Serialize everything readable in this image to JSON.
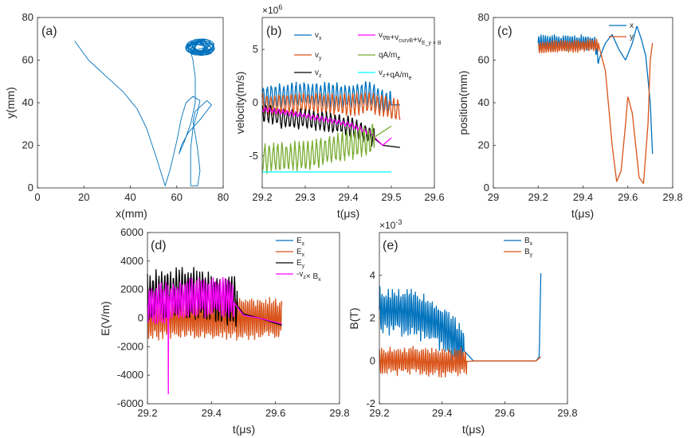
{
  "colors": {
    "blue": "#0072BD",
    "orange": "#D95319",
    "black": "#000000",
    "magenta": "#FF00FF",
    "green": "#77AC30",
    "cyan": "#00FFFF",
    "axis": "#262626"
  },
  "chart_data": [
    {
      "id": "a",
      "type": "line",
      "panel_label": "(a)",
      "xlabel": "x(mm)",
      "ylabel": "y(mm)",
      "xlim": [
        0,
        80
      ],
      "ylim": [
        0,
        80
      ],
      "xticks": [
        "0",
        "20",
        "40",
        "60",
        "80"
      ],
      "yticks": [
        "0",
        "20",
        "40",
        "60",
        "80"
      ],
      "series": [
        {
          "name": "trajectory",
          "color": "blue",
          "points": [
            [
              16,
              69
            ],
            [
              22,
              60
            ],
            [
              30,
              52
            ],
            [
              37,
              45
            ],
            [
              43,
              37
            ],
            [
              47,
              28
            ],
            [
              51,
              15
            ],
            [
              55,
              1
            ],
            [
              57,
              8
            ],
            [
              60,
              22
            ],
            [
              62,
              33
            ],
            [
              64,
              40
            ],
            [
              67,
              43
            ],
            [
              70,
              41
            ],
            [
              69,
              36
            ],
            [
              67,
              28
            ],
            [
              66,
              18
            ],
            [
              66,
              6
            ],
            [
              66,
              1
            ],
            [
              69,
              1
            ],
            [
              70,
              8
            ],
            [
              69,
              18
            ],
            [
              68,
              25
            ],
            [
              67,
              31
            ],
            [
              68,
              36
            ],
            [
              71,
              39
            ],
            [
              73,
              41
            ],
            [
              75,
              39
            ],
            [
              70,
              32
            ],
            [
              65,
              26
            ],
            [
              62,
              20
            ],
            [
              61,
              16
            ],
            [
              63,
              21
            ],
            [
              66,
              30
            ],
            [
              68,
              40
            ],
            [
              68,
              52
            ],
            [
              67,
              60
            ],
            [
              66,
              64
            ]
          ],
          "loop_center": [
            70,
            66
          ],
          "loop_radius": [
            5.5,
            3.5
          ],
          "loop_turns": 24
        }
      ]
    },
    {
      "id": "b",
      "type": "line",
      "panel_label": "(b)",
      "xlabel": "t(μs)",
      "ylabel": "velocity(m/s)",
      "y_multiplier": "×10",
      "y_multiplier_exp": "6",
      "xlim": [
        29.2,
        29.6
      ],
      "ylim": [
        -8,
        8
      ],
      "xticks": [
        "29.2",
        "29.3",
        "29.4",
        "29.5",
        "29.6"
      ],
      "yticks": [
        "-5",
        "0",
        "5"
      ],
      "series": [
        {
          "name": "v_x",
          "label": "v",
          "sub": "x",
          "color": "blue",
          "base": [
            [
              29.2,
              0.5
            ],
            [
              29.3,
              0.8
            ],
            [
              29.4,
              0.6
            ],
            [
              29.45,
              0.9
            ],
            [
              29.5,
              -0.2
            ],
            [
              29.52,
              -0.2
            ]
          ],
          "osc_amp": 1.3,
          "osc_freq": 105,
          "osc_end": 29.5
        },
        {
          "name": "v_y",
          "label": "v",
          "sub": "y",
          "color": "orange",
          "base": [
            [
              29.2,
              -0.2
            ],
            [
              29.3,
              0
            ],
            [
              29.4,
              -0.2
            ],
            [
              29.45,
              0
            ],
            [
              29.5,
              -0.5
            ],
            [
              29.52,
              -0.8
            ]
          ],
          "osc_amp": 1.1,
          "osc_freq": 105,
          "osc_end": 29.52
        },
        {
          "name": "v_z",
          "label": "v",
          "sub": "z",
          "color": "black",
          "base": [
            [
              29.2,
              -0.8
            ],
            [
              29.25,
              -1.5
            ],
            [
              29.3,
              -1.5
            ],
            [
              29.35,
              -1.8
            ],
            [
              29.4,
              -2.2
            ],
            [
              29.45,
              -3.0
            ],
            [
              29.48,
              -4.0
            ],
            [
              29.52,
              -4.2
            ]
          ],
          "osc_amp": 1.0,
          "osc_freq": 100,
          "osc_end": 29.46
        },
        {
          "name": "v_drift",
          "label": "v",
          "sub": "∇B",
          "label2": "+v",
          "sub2": "curvB",
          "label3": "+v",
          "sub3": "E_y × B",
          "color": "magenta",
          "base": [
            [
              29.2,
              -0.6
            ],
            [
              29.3,
              -1.2
            ],
            [
              29.4,
              -2.0
            ],
            [
              29.45,
              -2.8
            ],
            [
              29.47,
              -3.6
            ],
            [
              29.48,
              -4.0
            ],
            [
              29.5,
              -3.3
            ]
          ],
          "osc_amp": 0.25,
          "osc_freq": 100,
          "osc_end": 29.45
        },
        {
          "name": "qA/m_e",
          "label": "qA/m",
          "sub": "e",
          "color": "green",
          "base": [
            [
              29.2,
              -5.2
            ],
            [
              29.3,
              -5.0
            ],
            [
              29.4,
              -4.0
            ],
            [
              29.45,
              -3.5
            ],
            [
              29.5,
              -2.2
            ]
          ],
          "osc_amp": 1.5,
          "osc_freq": 100,
          "osc_end": 29.46
        },
        {
          "name": "v_z+qA/m_e",
          "label": "v",
          "sub": "z",
          "label2": "+qA/m",
          "sub2": "e",
          "color": "cyan",
          "base": [
            [
              29.2,
              -6.5
            ],
            [
              29.5,
              -6.5
            ]
          ],
          "osc_amp": 0,
          "osc_freq": 0,
          "osc_end": 29.2
        }
      ]
    },
    {
      "id": "c",
      "type": "line",
      "panel_label": "(c)",
      "xlabel": "t(μs)",
      "ylabel": "position(mm)",
      "xlim": [
        29.0,
        29.8
      ],
      "ylim": [
        0,
        80
      ],
      "xticks": [
        "29",
        "29.2",
        "29.4",
        "29.6",
        "29.8"
      ],
      "yticks": [
        "0",
        "20",
        "40",
        "60",
        "80"
      ],
      "series": [
        {
          "name": "x",
          "color": "blue",
          "base": [
            [
              29.2,
              68
            ],
            [
              29.45,
              68
            ],
            [
              29.47,
              60
            ],
            [
              29.5,
              68
            ],
            [
              29.53,
              72
            ],
            [
              29.56,
              65
            ],
            [
              29.59,
              60
            ],
            [
              29.62,
              68
            ],
            [
              29.64,
              76
            ],
            [
              29.66,
              70
            ],
            [
              29.68,
              62
            ],
            [
              29.7,
              40
            ],
            [
              29.71,
              16
            ]
          ],
          "osc_amp": 4,
          "osc_freq": 100,
          "osc_end": 29.47
        },
        {
          "name": "y",
          "color": "orange",
          "base": [
            [
              29.2,
              66
            ],
            [
              29.47,
              67
            ],
            [
              29.5,
              55
            ],
            [
              29.53,
              20
            ],
            [
              29.55,
              3
            ],
            [
              29.57,
              8
            ],
            [
              29.59,
              30
            ],
            [
              29.6,
              43
            ],
            [
              29.62,
              35
            ],
            [
              29.65,
              5
            ],
            [
              29.67,
              2
            ],
            [
              29.69,
              30
            ],
            [
              29.7,
              60
            ],
            [
              29.71,
              68
            ]
          ],
          "osc_amp": 3,
          "osc_freq": 100,
          "osc_end": 29.47
        }
      ]
    },
    {
      "id": "d",
      "type": "line",
      "panel_label": "(d)",
      "xlabel": "t(μs)",
      "ylabel": "E(V/m)",
      "xlim": [
        29.2,
        29.8
      ],
      "ylim": [
        -6000,
        6000
      ],
      "xticks": [
        "29.2",
        "29.4",
        "29.6",
        "29.8"
      ],
      "yticks": [
        "-6000",
        "-4000",
        "-2000",
        "0",
        "2000",
        "4000",
        "6000"
      ],
      "series": [
        {
          "name": "E_z",
          "label": "E",
          "sub": "z",
          "color": "blue",
          "base": [
            [
              29.2,
              0
            ],
            [
              29.62,
              0
            ]
          ],
          "osc_amp": 0,
          "osc_freq": 0,
          "osc_end": 29.2
        },
        {
          "name": "E_x",
          "label": "E",
          "sub": "x",
          "color": "orange",
          "base": [
            [
              29.2,
              0
            ],
            [
              29.4,
              0
            ],
            [
              29.62,
              0
            ]
          ],
          "osc_amp": 1600,
          "osc_freq": 160,
          "osc_end": 29.62
        },
        {
          "name": "E_y",
          "label": "E",
          "sub": "y",
          "color": "black",
          "base": [
            [
              29.2,
              1500
            ],
            [
              29.3,
              1800
            ],
            [
              29.4,
              1500
            ],
            [
              29.47,
              1200
            ],
            [
              29.5,
              300
            ],
            [
              29.55,
              0
            ],
            [
              29.62,
              -500
            ]
          ],
          "osc_amp": 1900,
          "osc_freq": 110,
          "osc_end": 29.48
        },
        {
          "name": "-v_z x B_x",
          "label": "-v",
          "sub": "z",
          "label2": "× B",
          "sub2": "x",
          "color": "magenta",
          "base": [
            [
              29.2,
              900
            ],
            [
              29.3,
              1300
            ],
            [
              29.4,
              1500
            ],
            [
              29.46,
              1400
            ],
            [
              29.5,
              200
            ],
            [
              29.55,
              0
            ],
            [
              29.62,
              -400
            ]
          ],
          "osc_amp": 1500,
          "osc_freq": 135,
          "osc_end": 29.47,
          "spike": [
            29.265,
            -5300
          ]
        }
      ]
    },
    {
      "id": "e",
      "type": "line",
      "panel_label": "(e)",
      "xlabel": "t(μs)",
      "ylabel": "B(T)",
      "y_multiplier": "×10",
      "y_multiplier_exp": "-3",
      "xlim": [
        29.2,
        29.8
      ],
      "ylim": [
        -2,
        6
      ],
      "xticks": [
        "29.2",
        "29.4",
        "29.6",
        "29.8"
      ],
      "yticks": [
        "-2",
        "0",
        "2",
        "4"
      ],
      "series": [
        {
          "name": "B_x",
          "label": "B",
          "sub": "x",
          "color": "blue",
          "base": [
            [
              29.2,
              2.4
            ],
            [
              29.3,
              2.3
            ],
            [
              29.4,
              1.6
            ],
            [
              29.45,
              0.8
            ],
            [
              29.5,
              0.0
            ],
            [
              29.6,
              0.0
            ],
            [
              29.7,
              0.0
            ],
            [
              29.71,
              0.2
            ],
            [
              29.715,
              4.1
            ]
          ],
          "osc_amp": 1.2,
          "osc_freq": 150,
          "osc_end": 29.47
        },
        {
          "name": "B_y",
          "label": "B",
          "sub": "y",
          "color": "orange",
          "base": [
            [
              29.2,
              0.0
            ],
            [
              29.3,
              0.0
            ],
            [
              29.4,
              -0.1
            ],
            [
              29.5,
              0.0
            ],
            [
              29.7,
              0.0
            ],
            [
              29.715,
              0.2
            ]
          ],
          "osc_amp": 0.7,
          "osc_freq": 150,
          "osc_end": 29.48
        }
      ]
    }
  ]
}
